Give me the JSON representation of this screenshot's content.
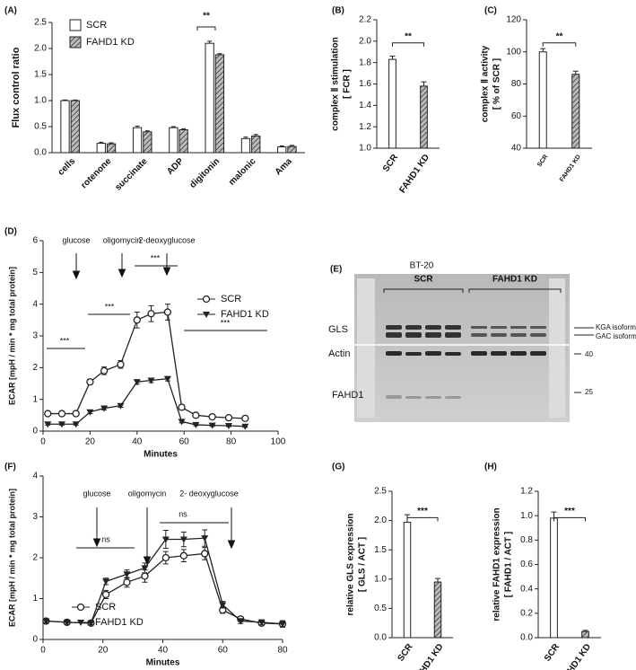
{
  "chart_data": [
    {
      "type": "bar",
      "label": "(A)",
      "ylabel": "Flux control ratio",
      "categories": [
        "cells",
        "rotenone",
        "succinate",
        "ADP",
        "digitonin",
        "malonic",
        "Ama"
      ],
      "series": [
        {
          "name": "SCR",
          "color": "#ffffff",
          "hatch": false,
          "values": [
            1.0,
            0.18,
            0.48,
            0.48,
            2.1,
            0.27,
            0.11
          ],
          "errors": [
            0.01,
            0.02,
            0.03,
            0.02,
            0.04,
            0.03,
            0.02
          ]
        },
        {
          "name": "FAHD1 KD",
          "color": "#8a8a8a",
          "hatch": true,
          "values": [
            1.0,
            0.17,
            0.4,
            0.44,
            1.88,
            0.32,
            0.12
          ],
          "errors": [
            0.01,
            0.02,
            0.02,
            0.02,
            0.02,
            0.03,
            0.02
          ]
        }
      ],
      "ylim": [
        0,
        2.5
      ],
      "yticks": [
        {
          "value": 0,
          "label": "0.0"
        },
        {
          "value": 0.5,
          "label": "0.5"
        },
        {
          "value": 1,
          "label": "1.0"
        },
        {
          "value": 1.5,
          "label": "1.5"
        },
        {
          "value": 2,
          "label": "2.0"
        },
        {
          "value": 2.5,
          "label": "2.5"
        }
      ],
      "annotations": [
        "**"
      ],
      "legend": "upper-left"
    },
    {
      "type": "bar",
      "label": "(B)",
      "ylabel": [
        "complex Ⅱ stimulation",
        "[ FCR ]"
      ],
      "categories": [
        "SCR",
        "FAHD1 KD"
      ],
      "values": [
        1.83,
        1.58
      ],
      "errors": [
        0.03,
        0.04
      ],
      "colors": [
        "#ffffff",
        "#8a8a8a"
      ],
      "hatch": [
        false,
        true
      ],
      "ylim": [
        1.0,
        2.2
      ],
      "yticks": [
        {
          "value": 1,
          "label": "1.0"
        },
        {
          "value": 1.2,
          "label": "1.2"
        },
        {
          "value": 1.4,
          "label": "1.4"
        },
        {
          "value": 1.6,
          "label": "1.6"
        },
        {
          "value": 1.8,
          "label": "1.8"
        },
        {
          "value": 2,
          "label": "2.0"
        },
        {
          "value": 2.2,
          "label": "2.2"
        }
      ],
      "annotations": [
        "**"
      ]
    },
    {
      "type": "bar",
      "label": "(C)",
      "ylabel": [
        "complex Ⅱ activity",
        "[ % of SCR ]"
      ],
      "categories": [
        "SCR",
        "FAHD1 KD"
      ],
      "values": [
        100,
        86
      ],
      "errors": [
        2,
        2
      ],
      "colors": [
        "#ffffff",
        "#8a8a8a"
      ],
      "hatch": [
        false,
        true
      ],
      "ylim": [
        40,
        120
      ],
      "yticks": [
        40,
        60,
        80,
        100,
        120
      ],
      "annotations": [
        "**"
      ]
    },
    {
      "type": "line",
      "label": "(D)",
      "ylabel": "ECAR [mpH / min * mg total protein]",
      "xlabel": "Minutes",
      "series": [
        {
          "name": "SCR",
          "marker": "circle",
          "color": "#222222",
          "x": [
            2,
            8,
            14,
            20,
            26,
            33,
            40,
            46,
            53,
            59,
            65,
            72,
            79,
            86
          ],
          "values": [
            0.55,
            0.55,
            0.55,
            1.55,
            1.9,
            2.1,
            3.5,
            3.7,
            3.75,
            0.75,
            0.5,
            0.45,
            0.42,
            0.4
          ],
          "errors": [
            0.05,
            0.05,
            0.05,
            0.08,
            0.12,
            0.12,
            0.25,
            0.25,
            0.25,
            0.08,
            0.05,
            0.05,
            0.05,
            0.05
          ]
        },
        {
          "name": "FAHD1 KD",
          "marker": "triangle",
          "color": "#222222",
          "x": [
            2,
            8,
            14,
            20,
            26,
            33,
            40,
            46,
            53,
            59,
            65,
            72,
            79,
            86
          ],
          "values": [
            0.22,
            0.22,
            0.22,
            0.6,
            0.72,
            0.8,
            1.55,
            1.6,
            1.65,
            0.3,
            0.2,
            0.18,
            0.17,
            0.15
          ],
          "errors": [
            0.03,
            0.03,
            0.03,
            0.05,
            0.05,
            0.05,
            0.07,
            0.07,
            0.07,
            0.04,
            0.03,
            0.03,
            0.03,
            0.03
          ]
        }
      ],
      "xlim": [
        0,
        100
      ],
      "xticks": [
        0,
        20,
        40,
        60,
        80,
        100
      ],
      "ylim": [
        0,
        6
      ],
      "yticks": [
        0,
        1,
        2,
        3,
        4,
        5,
        6
      ],
      "annotations": [
        "glucose",
        "oligomycin",
        "2-deoxyglucose",
        "***",
        "***",
        "***",
        "***"
      ],
      "legend": "right"
    },
    {
      "type": "line",
      "label": "(F)",
      "ylabel": "ECAR [mpH / min * mg total protein]",
      "xlabel": "Minutes",
      "series": [
        {
          "name": "SCR",
          "marker": "circle",
          "color": "#222222",
          "x": [
            1,
            8,
            16,
            21,
            28,
            34,
            41,
            47,
            54,
            60,
            66,
            73,
            80
          ],
          "values": [
            0.45,
            0.42,
            0.4,
            1.1,
            1.4,
            1.55,
            2.0,
            2.05,
            2.1,
            0.72,
            0.5,
            0.4,
            0.38
          ],
          "errors": [
            0.04,
            0.05,
            0.04,
            0.1,
            0.12,
            0.15,
            0.15,
            0.15,
            0.15,
            0.08,
            0.06,
            0.06,
            0.06
          ]
        },
        {
          "name": "FAHD1 KD",
          "marker": "triangle",
          "color": "#222222",
          "x": [
            1,
            8,
            16,
            21,
            28,
            34,
            41,
            47,
            54,
            60,
            66,
            73,
            80
          ],
          "values": [
            0.45,
            0.42,
            0.4,
            1.42,
            1.6,
            1.75,
            2.45,
            2.45,
            2.48,
            0.85,
            0.45,
            0.42,
            0.38
          ],
          "errors": [
            0.04,
            0.05,
            0.04,
            0.08,
            0.1,
            0.12,
            0.22,
            0.18,
            0.2,
            0.08,
            0.06,
            0.06,
            0.08
          ]
        }
      ],
      "xlim": [
        0,
        80
      ],
      "xticks": [
        0,
        20,
        40,
        60,
        80
      ],
      "ylim": [
        0,
        4
      ],
      "yticks": [
        0,
        1,
        2,
        3,
        4
      ],
      "annotations": [
        "glucose",
        "oligomycin",
        "2- deoxyglucose",
        "ns",
        "ns"
      ],
      "legend": "lower-left"
    },
    {
      "type": "bar",
      "label": "(G)",
      "ylabel": [
        "relative GLS expression",
        "[ GLS / ACT ]"
      ],
      "categories": [
        "SCR",
        "FAHD1 KD"
      ],
      "values": [
        1.97,
        0.95
      ],
      "errors": [
        0.13,
        0.06
      ],
      "colors": [
        "#ffffff",
        "#8a8a8a"
      ],
      "hatch": [
        false,
        true
      ],
      "ylim": [
        0,
        2.5
      ],
      "yticks": [
        {
          "value": 0,
          "label": "0.0"
        },
        {
          "value": 0.5,
          "label": "0.5"
        },
        {
          "value": 1,
          "label": "1.0"
        },
        {
          "value": 1.5,
          "label": "1.5"
        },
        {
          "value": 2,
          "label": "2.0"
        },
        {
          "value": 2.5,
          "label": "2.5"
        }
      ],
      "annotations": [
        "***"
      ]
    },
    {
      "type": "bar",
      "label": "(H)",
      "ylabel": [
        "relative FAHD1 expression",
        "[ FAHD1 / ACT ]"
      ],
      "categories": [
        "SCR",
        "FAHD1 KD"
      ],
      "values": [
        0.98,
        0.05
      ],
      "errors": [
        0.05,
        0.01
      ],
      "colors": [
        "#ffffff",
        "#8a8a8a"
      ],
      "hatch": [
        false,
        true
      ],
      "ylim": [
        0,
        1.2
      ],
      "yticks": [
        {
          "value": 0,
          "label": "0.0"
        },
        {
          "value": 0.2,
          "label": "0.2"
        },
        {
          "value": 0.4,
          "label": "0.4"
        },
        {
          "value": 0.6,
          "label": "0.6"
        },
        {
          "value": 0.8,
          "label": "0.8"
        },
        {
          "value": 1,
          "label": "1.0"
        },
        {
          "value": 1.2,
          "label": "1.2"
        }
      ],
      "annotations": [
        "***"
      ]
    }
  ],
  "blot": {
    "label": "(E)",
    "title": "BT-20",
    "groups": [
      "SCR",
      "FAHD1 KD"
    ],
    "rows": [
      "GLS",
      "Actin",
      "FAHD1"
    ],
    "isoforms": [
      "KGA isoform",
      "GAC isoform"
    ],
    "markers": [
      "40",
      "25"
    ]
  }
}
